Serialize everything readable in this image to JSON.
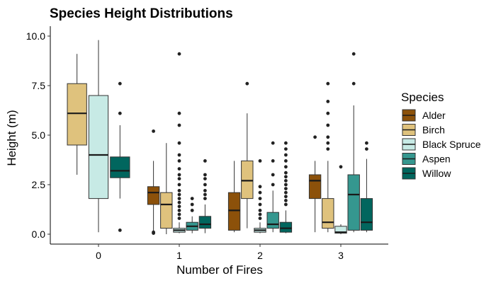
{
  "chart_data": {
    "type": "boxplot",
    "title": "Species Height Distributions",
    "xlabel": "Number of Fires",
    "ylabel": "Height (m)",
    "categories": [
      "0",
      "1",
      "2",
      "3"
    ],
    "yticks": [
      "0.0",
      "2.5",
      "5.0",
      "7.5",
      "10.0"
    ],
    "ylim": [
      -0.5,
      10.5
    ],
    "grid": false,
    "legend": {
      "title": "Species",
      "placement": "right"
    },
    "series": [
      {
        "name": "Alder",
        "color": "#8C510A",
        "boxes": [
          null,
          {
            "whisker_low": 0.0,
            "q1": 1.5,
            "median": 2.1,
            "q3": 2.4,
            "whisker_high": 3.7,
            "outliers": [
              5.2,
              0.1,
              0.05
            ]
          },
          {
            "whisker_low": 0.1,
            "q1": 0.2,
            "median": 1.2,
            "q3": 2.1,
            "whisker_high": 3.7,
            "outliers": []
          },
          {
            "whisker_low": 0.1,
            "q1": 1.8,
            "median": 2.7,
            "q3": 3.0,
            "whisker_high": 3.7,
            "outliers": [
              4.9
            ]
          }
        ]
      },
      {
        "name": "Birch",
        "color": "#DFC27D",
        "boxes": [
          {
            "whisker_low": 3.0,
            "q1": 4.5,
            "median": 6.1,
            "q3": 7.6,
            "whisker_high": 9.1,
            "outliers": []
          },
          {
            "whisker_low": 0.0,
            "q1": 0.3,
            "median": 1.5,
            "q3": 2.1,
            "whisker_high": 4.6,
            "outliers": []
          },
          {
            "whisker_low": 0.3,
            "q1": 1.8,
            "median": 2.7,
            "q3": 3.7,
            "whisker_high": 6.1,
            "outliers": [
              7.6
            ]
          },
          {
            "whisker_low": 0.1,
            "q1": 0.3,
            "median": 0.6,
            "q3": 1.8,
            "whisker_high": 3.7,
            "outliers": [
              4.3,
              4.6,
              4.9,
              5.5,
              6.1,
              6.7,
              7.6
            ]
          }
        ]
      },
      {
        "name": "Black Spruce",
        "color": "#C7EAE5",
        "boxes": [
          {
            "whisker_low": 0.1,
            "q1": 1.8,
            "median": 4.0,
            "q3": 7.0,
            "whisker_high": 9.8,
            "outliers": []
          },
          {
            "whisker_low": 0.05,
            "q1": 0.1,
            "median": 0.2,
            "q3": 0.3,
            "whisker_high": 0.6,
            "outliers": [
              0.8,
              1.0,
              1.2,
              1.4,
              1.6,
              1.8,
              2.0,
              2.2,
              2.5,
              2.8,
              3.0,
              3.3,
              3.7,
              4.0,
              4.6,
              5.5,
              6.1,
              9.1
            ]
          },
          {
            "whisker_low": 0.05,
            "q1": 0.1,
            "median": 0.2,
            "q3": 0.3,
            "whisker_high": 0.6,
            "outliers": [
              0.8,
              1.0,
              1.2,
              1.5,
              1.8,
              2.1,
              2.4,
              3.7
            ]
          },
          {
            "whisker_low": 0.0,
            "q1": 0.05,
            "median": 0.1,
            "q3": 0.4,
            "whisker_high": 0.5,
            "outliers": [
              3.4
            ]
          }
        ]
      },
      {
        "name": "Aspen",
        "color": "#35978F",
        "boxes": [
          null,
          {
            "whisker_low": 0.05,
            "q1": 0.2,
            "median": 0.4,
            "q3": 0.6,
            "whisker_high": 0.9,
            "outliers": [
              1.2,
              1.5,
              1.8
            ]
          },
          {
            "whisker_low": 0.1,
            "q1": 0.3,
            "median": 0.5,
            "q3": 1.1,
            "whisker_high": 2.2,
            "outliers": [
              2.5,
              3.0,
              3.7,
              4.6
            ]
          },
          {
            "whisker_low": 0.1,
            "q1": 0.2,
            "median": 2.0,
            "q3": 3.0,
            "whisker_high": 6.5,
            "outliers": [
              7.6,
              9.1
            ]
          }
        ]
      },
      {
        "name": "Willow",
        "color": "#01665E",
        "boxes": [
          {
            "whisker_low": 1.8,
            "q1": 2.85,
            "median": 3.2,
            "q3": 3.9,
            "whisker_high": 5.5,
            "outliers": [
              0.2,
              6.1,
              7.6
            ]
          },
          {
            "whisker_low": 0.05,
            "q1": 0.3,
            "median": 0.5,
            "q3": 0.9,
            "whisker_high": 1.5,
            "outliers": [
              1.8,
              2.0,
              2.2,
              2.5,
              2.8,
              3.0,
              3.7
            ]
          },
          {
            "whisker_low": 0.05,
            "q1": 0.1,
            "median": 0.3,
            "q3": 0.6,
            "whisker_high": 1.2,
            "outliers": [
              1.5,
              1.7,
              1.9,
              2.1,
              2.3,
              2.5,
              2.7,
              2.9,
              3.1,
              3.4,
              3.7,
              4.0,
              4.3,
              4.6
            ]
          },
          {
            "whisker_low": 0.1,
            "q1": 0.2,
            "median": 0.6,
            "q3": 1.8,
            "whisker_high": 3.8,
            "outliers": [
              4.3,
              4.6
            ]
          }
        ]
      }
    ]
  }
}
